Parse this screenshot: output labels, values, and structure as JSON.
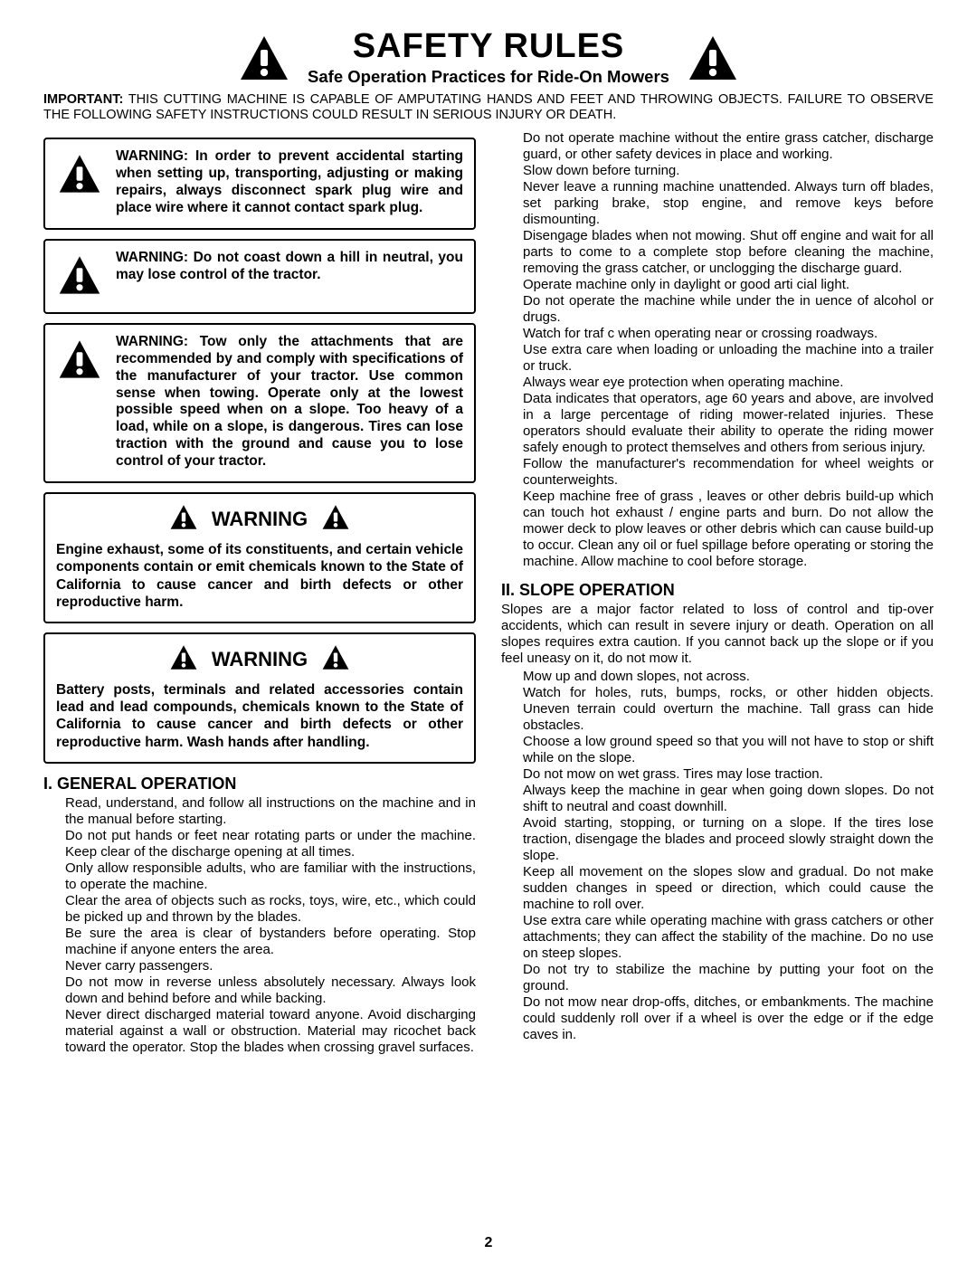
{
  "header": {
    "title": "SAFETY RULES",
    "subtitle": "Safe Operation Practices for Ride-On Mowers"
  },
  "important": {
    "label": "IMPORTANT:",
    "text": "THIS CUTTING MACHINE IS CAPABLE OF AMPUTATING HANDS AND FEET AND THROWING OBJECTS. FAILURE TO OBSERVE THE FOLLOWING SAFETY INSTRUCTIONS COULD RESULT IN SERIOUS INJURY OR DEATH."
  },
  "icon_colors": {
    "fill": "#000000",
    "exclaim": "#ffffff"
  },
  "warnings_small": [
    "WARNING: In order to prevent accidental starting when setting up, transporting, adjusting or making repairs, always disconnect spark plug wire and place wire where it cannot contact spark plug.",
    "WARNING: Do not coast down a hill in neutral, you may lose control of the tractor.",
    "WARNING: Tow only the attachments that are recommended by and comply with specifications of the manufacturer of your tractor. Use common sense when towing. Operate only at the lowest possible speed when on a slope. Too heavy of a load, while on a slope, is dangerous. Tires can lose traction with the ground and cause you to lose control of your tractor."
  ],
  "warnings_large": [
    {
      "heading": "WARNING",
      "body": "Engine exhaust, some of its constituents, and certain vehicle components contain or emit chemicals known to the State of California to cause cancer and birth defects or other reproductive harm."
    },
    {
      "heading": "WARNING",
      "body": "Battery posts, terminals and related accessories contain lead and lead compounds, chemicals known to the State of California to cause cancer and birth defects or other reproductive harm. Wash hands after handling."
    }
  ],
  "sections": [
    {
      "title": "I. GENERAL OPERATION",
      "intro": "",
      "items": [
        "Read, understand, and follow all instructions on the machine and in the manual before starting.",
        "Do not put hands or feet near rotating parts or under the machine. Keep clear of the discharge opening at all times.",
        "Only allow responsible adults, who are familiar with the instructions, to operate the machine.",
        "Clear the area of objects such as rocks, toys, wire, etc., which could be picked up and thrown by the blades.",
        "Be sure the area is clear of bystanders before operating. Stop machine if anyone enters the area.",
        "Never carry passengers.",
        "Do not mow in reverse unless absolutely necessary. Always look down and behind before and while backing.",
        "Never direct discharged material toward anyone. Avoid discharging material against a wall or obstruction. Material may ricochet back toward the operator. Stop the blades when crossing gravel surfaces.",
        "Do not operate machine without the entire grass catcher, discharge guard, or other safety devices in place and working.",
        "Slow down before turning.",
        "Never leave a running machine unattended. Always turn off blades, set parking brake, stop engine, and remove keys before dismounting.",
        "Disengage blades when not mowing. Shut off engine and wait for all parts to come to a complete stop before cleaning the machine, removing the grass catcher, or unclogging the discharge guard.",
        "Operate machine only in daylight or good arti cial light.",
        "Do not operate the machine while under the in uence of alcohol or drugs.",
        "Watch for traf c when operating near or crossing roadways.",
        "Use extra care when loading or unloading the machine into a trailer or truck.",
        "Always wear eye protection when operating machine.",
        "Data indicates that operators, age 60 years and above, are involved in a large percentage of riding mower-related injuries. These operators should evaluate their ability to operate the riding mower safely enough to protect themselves and others from serious injury.",
        "Follow the manufacturer's recommendation for wheel weights or counterweights.",
        "Keep machine free of grass , leaves or other debris build-up which can touch hot exhaust / engine parts and burn. Do not allow the mower deck to plow leaves or other debris which can cause build-up to occur. Clean any oil or fuel spillage before operating or storing the machine. Allow machine to cool before storage."
      ]
    },
    {
      "title": "II. SLOPE OPERATION",
      "intro": "Slopes are a major factor related to loss of control and tip-over accidents, which can result in severe injury or death. Operation on all slopes requires extra caution. If you cannot back up the slope or if you feel uneasy on it, do not mow it.",
      "items": [
        "Mow up and down slopes, not across.",
        "Watch for holes, ruts, bumps, rocks, or other hidden objects. Uneven terrain could overturn the machine. Tall grass can hide obstacles.",
        "Choose a low ground speed so that you will not have to stop or shift while on the slope.",
        "Do not mow on wet grass. Tires may lose traction.",
        "Always keep the machine in gear when going down slopes. Do not shift to neutral and coast downhill.",
        "Avoid starting, stopping, or turning on a slope. If the tires lose traction, disengage the blades and proceed slowly straight down the slope.",
        "Keep all movement on the slopes slow and gradual. Do not make sudden changes in speed or direction, which could cause the machine to roll over.",
        "Use extra care while operating machine with grass catchers or other attachments; they can affect the stability of the machine. Do no use on steep slopes.",
        "Do not try to stabilize the machine by putting your foot on the ground.",
        "Do not mow near drop-offs, ditches, or embankments. The machine could suddenly roll over if a wheel is over the edge or if the edge caves in."
      ]
    }
  ],
  "page_number": "2"
}
